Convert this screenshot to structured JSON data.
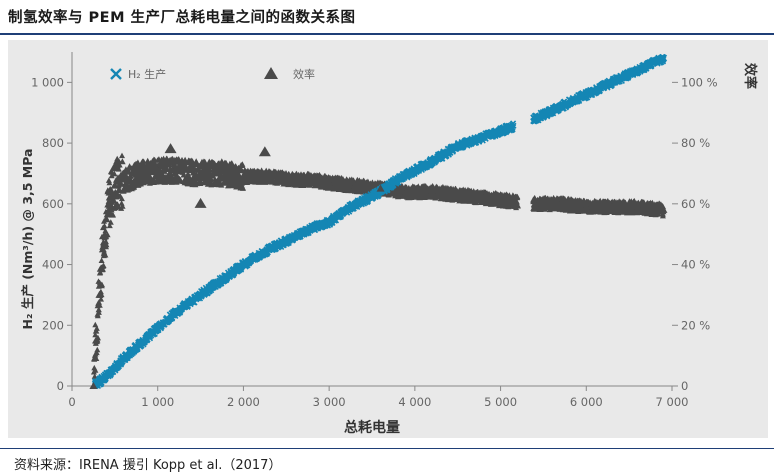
{
  "header": {
    "title": "制氢效率与 PEM 生产厂总耗电量之间的函数关系图"
  },
  "footer": {
    "source": "资料来源：IRENA 援引 Kopp et al.（2017）"
  },
  "chart_data": {
    "type": "scatter",
    "xlabel": "总耗电量",
    "ylabel_left": "H₂ 生产 (Nm³/h) @ 3,5 MPa",
    "ylabel_right": "效率",
    "xlim": [
      0,
      7000
    ],
    "ylim_left": [
      0,
      1100
    ],
    "ylim_right": [
      0,
      110
    ],
    "x_ticks": [
      "0",
      "1 000",
      "2 000",
      "3 000",
      "4 000",
      "5 000",
      "6 000",
      "7 000"
    ],
    "y_left_ticks": [
      "0",
      "200",
      "400",
      "600",
      "800",
      "1 000"
    ],
    "y_right_ticks": [
      "0",
      "20 %",
      "40 %",
      "60 %",
      "80 %",
      "100 %"
    ],
    "grid": false,
    "legend_position": "top-left",
    "colors": {
      "production": "#1486b4",
      "efficiency": "#4a4a4a",
      "background": "#e9e9e9"
    },
    "series": [
      {
        "name": "H₂ 生产",
        "axis": "left",
        "marker": "x",
        "points": [
          [
            280,
            5
          ],
          [
            350,
            20
          ],
          [
            450,
            45
          ],
          [
            600,
            90
          ],
          [
            800,
            140
          ],
          [
            1000,
            190
          ],
          [
            1200,
            240
          ],
          [
            1500,
            300
          ],
          [
            1800,
            360
          ],
          [
            2000,
            400
          ],
          [
            2300,
            450
          ],
          [
            2600,
            490
          ],
          [
            2800,
            520
          ],
          [
            3000,
            540
          ],
          [
            3200,
            580
          ],
          [
            3400,
            610
          ],
          [
            3600,
            640
          ],
          [
            3800,
            680
          ],
          [
            4000,
            710
          ],
          [
            4200,
            740
          ],
          [
            4500,
            790
          ],
          [
            4800,
            820
          ],
          [
            5000,
            840
          ],
          [
            5400,
            880
          ],
          [
            5700,
            920
          ],
          [
            6000,
            960
          ],
          [
            6300,
            1000
          ],
          [
            6600,
            1040
          ],
          [
            6900,
            1080
          ]
        ]
      },
      {
        "name": "效率",
        "axis": "right",
        "marker": "triangle",
        "points": [
          [
            250,
            0
          ],
          [
            280,
            15
          ],
          [
            320,
            30
          ],
          [
            360,
            45
          ],
          [
            400,
            55
          ],
          [
            450,
            62
          ],
          [
            500,
            66
          ],
          [
            600,
            68
          ],
          [
            800,
            70
          ],
          [
            1000,
            71
          ],
          [
            1200,
            71
          ],
          [
            1500,
            70
          ],
          [
            1800,
            70
          ],
          [
            2000,
            69
          ],
          [
            2300,
            69
          ],
          [
            2600,
            68
          ],
          [
            2800,
            68
          ],
          [
            3000,
            67
          ],
          [
            3300,
            66
          ],
          [
            3600,
            65
          ],
          [
            3900,
            64
          ],
          [
            4200,
            64
          ],
          [
            4500,
            63
          ],
          [
            4800,
            62
          ],
          [
            5100,
            61
          ],
          [
            5400,
            60
          ],
          [
            5700,
            60
          ],
          [
            6000,
            59
          ],
          [
            6300,
            59
          ],
          [
            6600,
            59
          ],
          [
            6900,
            58
          ]
        ]
      }
    ],
    "annotations": [
      {
        "x": 1150,
        "y": 78
      },
      {
        "x": 1500,
        "y": 60
      },
      {
        "x": 2250,
        "y": 77
      }
    ]
  }
}
